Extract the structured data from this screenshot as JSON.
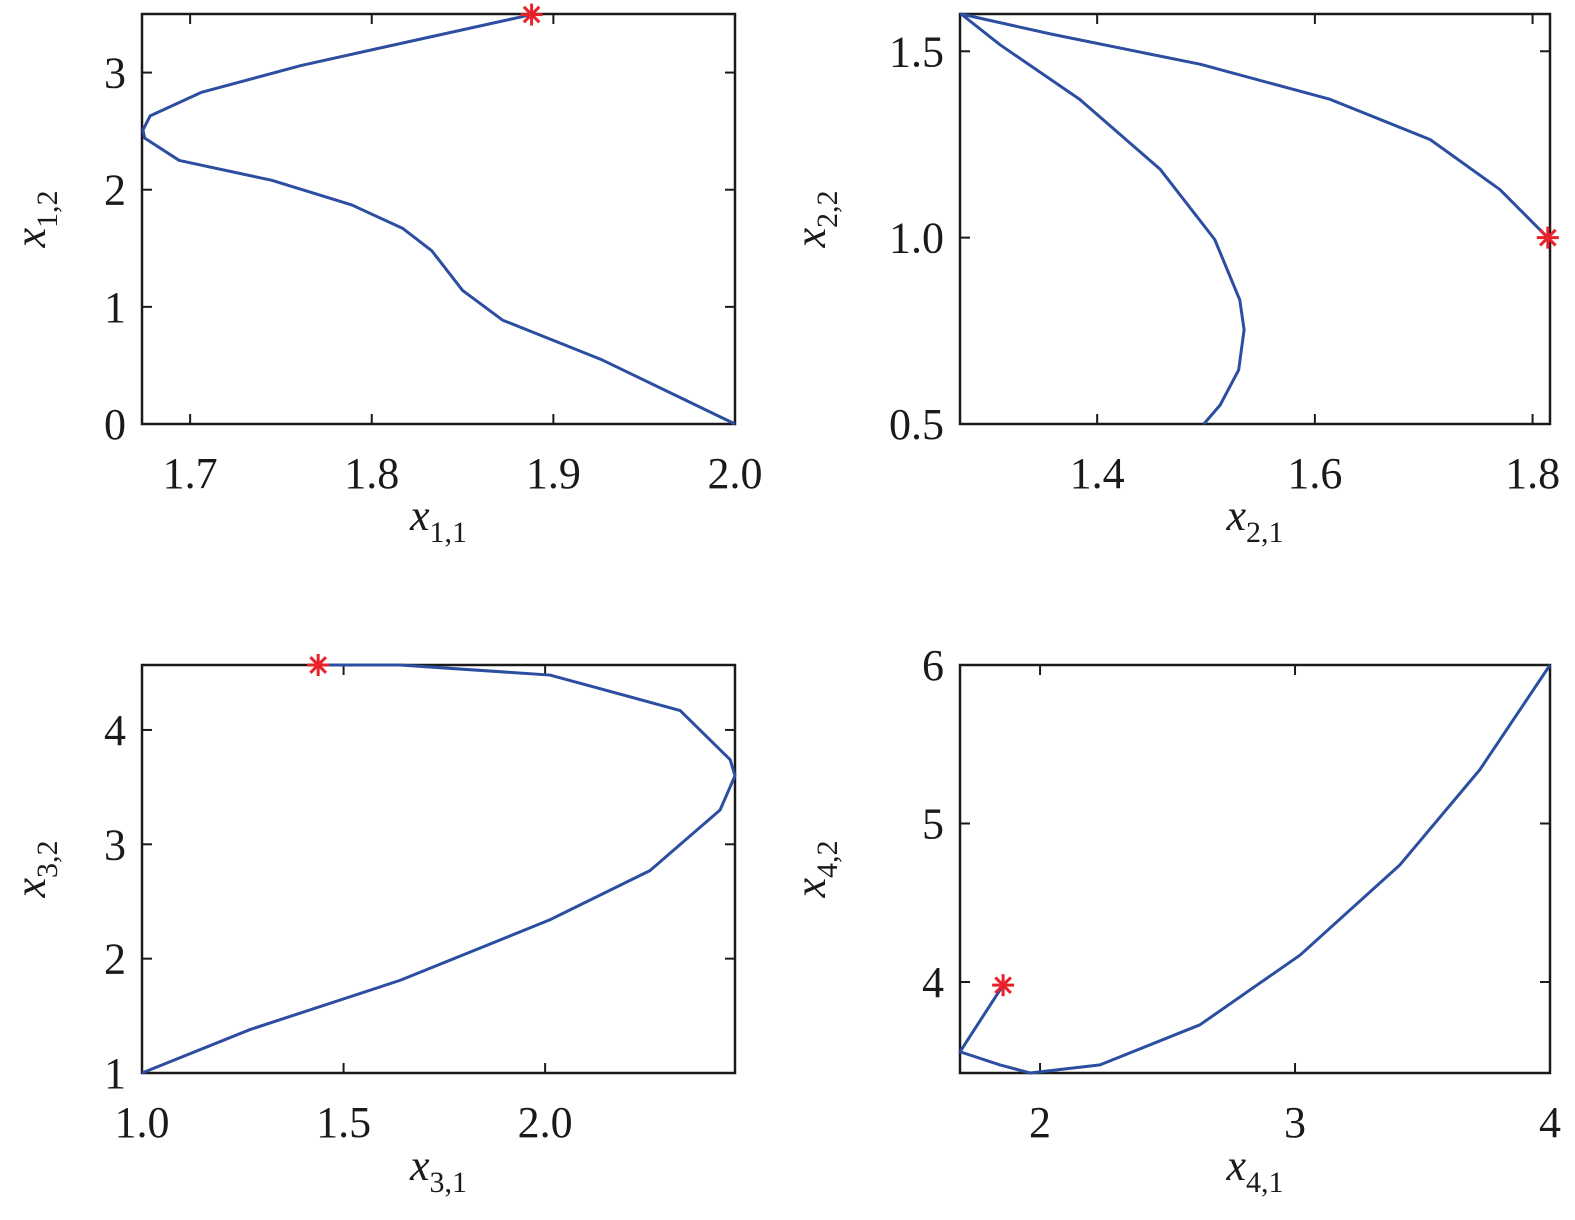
{
  "chart_data": [
    {
      "type": "line",
      "xlabel": {
        "symbol": "x",
        "subscript": "1,1"
      },
      "ylabel": {
        "symbol": "x",
        "subscript": "1,2"
      },
      "xlim": [
        1.6735,
        2.0
      ],
      "ylim": [
        0,
        3.5
      ],
      "xticks": [
        1.7,
        1.8,
        1.9,
        {
          "value": 2,
          "label": "2.0"
        }
      ],
      "yticks": [
        0,
        1,
        2,
        3
      ],
      "series": [
        {
          "color": "#2c4ea0",
          "marker": "none",
          "x": [
            2.0,
            1.927,
            1.872,
            1.85,
            1.833,
            1.817,
            1.789,
            1.745,
            1.694,
            1.675,
            1.674,
            1.678,
            1.706,
            1.761,
            1.828,
            1.888
          ],
          "values": [
            0,
            0.546,
            0.887,
            1.14,
            1.48,
            1.67,
            1.87,
            2.08,
            2.25,
            2.44,
            2.51,
            2.63,
            2.83,
            3.06,
            3.29,
            3.495
          ]
        },
        {
          "color": "#e8212a",
          "marker": "star",
          "x": [
            1.888
          ],
          "values": [
            3.495
          ]
        }
      ]
    },
    {
      "type": "line",
      "xlabel": {
        "symbol": "x",
        "subscript": "2,1"
      },
      "ylabel": {
        "symbol": "x",
        "subscript": "2,2"
      },
      "xlim": [
        1.274,
        1.816
      ],
      "ylim": [
        0.5,
        1.6
      ],
      "xticks": [
        1.4,
        1.6,
        1.8
      ],
      "yticks": [
        0.5,
        {
          "value": 1,
          "label": "1.0"
        },
        1.5
      ],
      "series": [
        {
          "color": "#2c4ea0",
          "marker": "none",
          "x": [
            1.814,
            1.77,
            1.706,
            1.614,
            1.495,
            1.358,
            1.275,
            1.311,
            1.384,
            1.458,
            1.508,
            1.531,
            1.535,
            1.53,
            1.513,
            1.498
          ],
          "values": [
            1.0,
            1.129,
            1.263,
            1.371,
            1.465,
            1.546,
            1.6,
            1.517,
            1.371,
            1.183,
            0.995,
            0.833,
            0.753,
            0.645,
            0.551,
            0.5
          ]
        },
        {
          "color": "#e8212a",
          "marker": "star",
          "x": [
            1.814
          ],
          "values": [
            1.0
          ]
        }
      ]
    },
    {
      "type": "line",
      "xlabel": {
        "symbol": "x",
        "subscript": "3,1"
      },
      "ylabel": {
        "symbol": "x",
        "subscript": "3,2"
      },
      "xlim": [
        1.0,
        2.471
      ],
      "ylim": [
        1.0,
        4.568
      ],
      "xticks": [
        {
          "value": 1,
          "label": "1.0"
        },
        1.5,
        {
          "value": 2,
          "label": "2.0"
        }
      ],
      "yticks": [
        1,
        2,
        3,
        4
      ],
      "series": [
        {
          "color": "#2c4ea0",
          "marker": "none",
          "x": [
            1.437,
            1.64,
            2.012,
            2.335,
            2.459,
            2.471,
            2.434,
            2.26,
            2.012,
            1.64,
            1.268,
            1.0
          ],
          "values": [
            4.568,
            4.568,
            4.48,
            4.17,
            3.74,
            3.6,
            3.3,
            2.77,
            2.34,
            1.81,
            1.38,
            1.0
          ]
        },
        {
          "color": "#e8212a",
          "marker": "star",
          "x": [
            1.437
          ],
          "values": [
            4.568
          ]
        }
      ]
    },
    {
      "type": "line",
      "xlabel": {
        "symbol": "x",
        "subscript": "4,1"
      },
      "ylabel": {
        "symbol": "x",
        "subscript": "4,2"
      },
      "xlim": [
        1.686,
        4.0
      ],
      "ylim": [
        3.426,
        6.0
      ],
      "xticks": [
        2,
        3,
        4
      ],
      "yticks": [
        4,
        5,
        6
      ],
      "series": [
        {
          "color": "#2c4ea0",
          "marker": "none",
          "x": [
            1.855,
            1.686,
            1.843,
            1.961,
            2.235,
            2.627,
            3.02,
            3.412,
            3.725,
            4.0
          ],
          "values": [
            3.98,
            3.56,
            3.477,
            3.426,
            3.477,
            3.73,
            4.17,
            4.74,
            5.34,
            6.0
          ]
        },
        {
          "color": "#e8212a",
          "marker": "star",
          "x": [
            1.855
          ],
          "values": [
            3.98
          ]
        }
      ]
    }
  ]
}
